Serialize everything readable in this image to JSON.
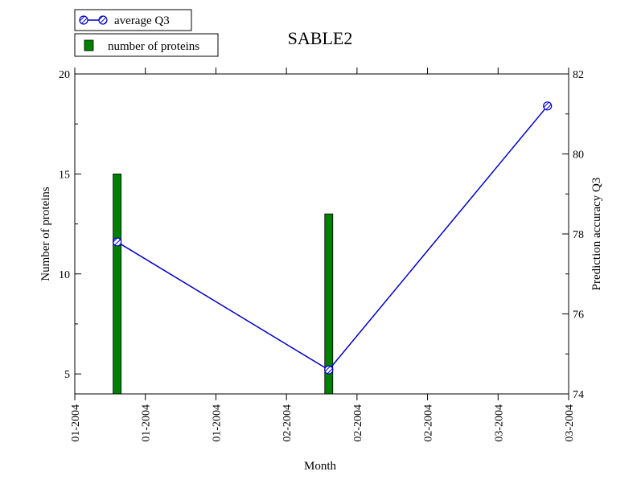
{
  "chart_data": {
    "type": "bar+line",
    "title": "SABLE2",
    "xlabel": "Month",
    "ylabel_left": "Number of proteins",
    "ylabel_right": "Prediction accuracy Q3",
    "xticks": [
      "01-2004",
      "01-2004",
      "01-2004",
      "02-2004",
      "02-2004",
      "02-2004",
      "03-2004",
      "03-2004"
    ],
    "yticks_left": [
      5,
      10,
      15,
      20
    ],
    "yticks_right": [
      74,
      76,
      78,
      80,
      82
    ],
    "ylim_left": [
      4,
      20
    ],
    "ylim_right": [
      74,
      82
    ],
    "legend_position": "top-left",
    "series": [
      {
        "name": "number of proteins",
        "kind": "bar",
        "axis": "left",
        "color": "#008000",
        "x_index": [
          0.6,
          3.6
        ],
        "values": [
          15,
          13
        ]
      },
      {
        "name": "average Q3",
        "kind": "line",
        "axis": "right",
        "color": "#0000cc",
        "x_index": [
          0.6,
          3.6,
          6.7
        ],
        "values": [
          77.8,
          74.6,
          81.2
        ]
      }
    ]
  }
}
